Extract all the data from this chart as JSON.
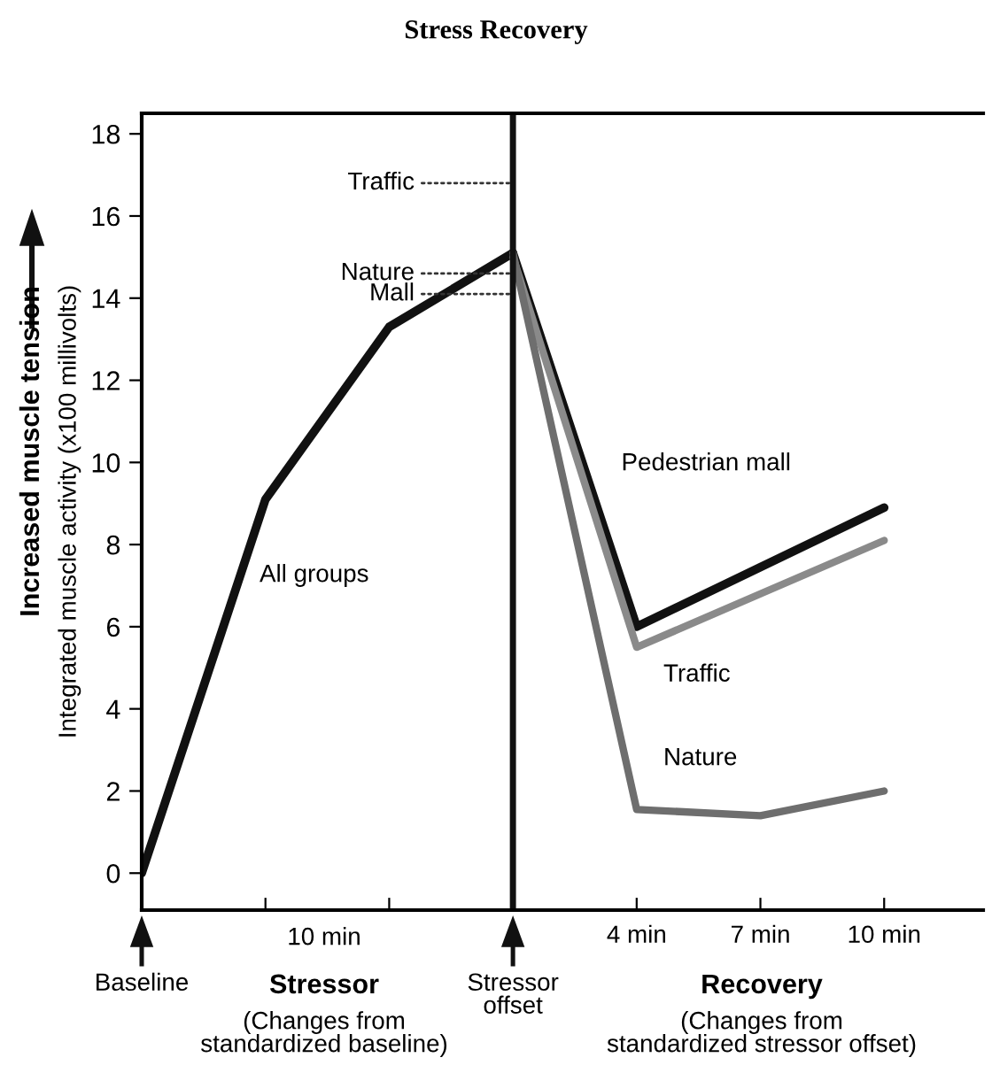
{
  "chart_data": {
    "type": "line",
    "title": "Stress Recovery",
    "ylabel": "Integrated muscle activity (x100 millivolts)",
    "categories": [
      "Baseline",
      null,
      null,
      "Stressor\noffset",
      "4 min",
      "7 min",
      "10 min"
    ],
    "ylim": [
      -0.9,
      18.5
    ],
    "yticks": [
      0,
      2,
      4,
      6,
      8,
      10,
      12,
      14,
      16,
      18
    ],
    "grid": false,
    "legend": false,
    "marker": "none",
    "line_style": "solid",
    "series": [
      {
        "name": "All groups",
        "color": "#111111",
        "values": [
          0,
          9.1,
          13.3,
          15.1,
          null,
          null,
          null
        ]
      },
      {
        "name": "Pedestrian mall",
        "color": "#111111",
        "values": [
          null,
          null,
          null,
          15.1,
          6.0,
          7.45,
          8.9
        ]
      },
      {
        "name": "Traffic",
        "color": "#8a8a8a",
        "values": [
          null,
          null,
          null,
          15.0,
          5.5,
          6.8,
          8.1
        ]
      },
      {
        "name": "Nature",
        "color": "#6e6e6e",
        "values": [
          null,
          null,
          null,
          15.1,
          1.55,
          1.4,
          2.0
        ]
      }
    ],
    "ref_lines": [
      {
        "axis": "x",
        "value": "Stressor\noffset",
        "label": null,
        "color": "#111111"
      }
    ],
    "annotations": [
      {
        "text": "Traffic",
        "x": "Stressor\noffset",
        "y": 16.8
      },
      {
        "text": "Nature",
        "x": "Stressor\noffset",
        "y": 14.6
      },
      {
        "text": "Mall",
        "x": "Stressor\noffset",
        "y": 14.1
      },
      "Increased muscle tension",
      "10 min",
      "Stressor",
      "(Changes from\nstandardized baseline)",
      "Recovery",
      "(Changes from\nstandardized stressor offset)"
    ]
  }
}
